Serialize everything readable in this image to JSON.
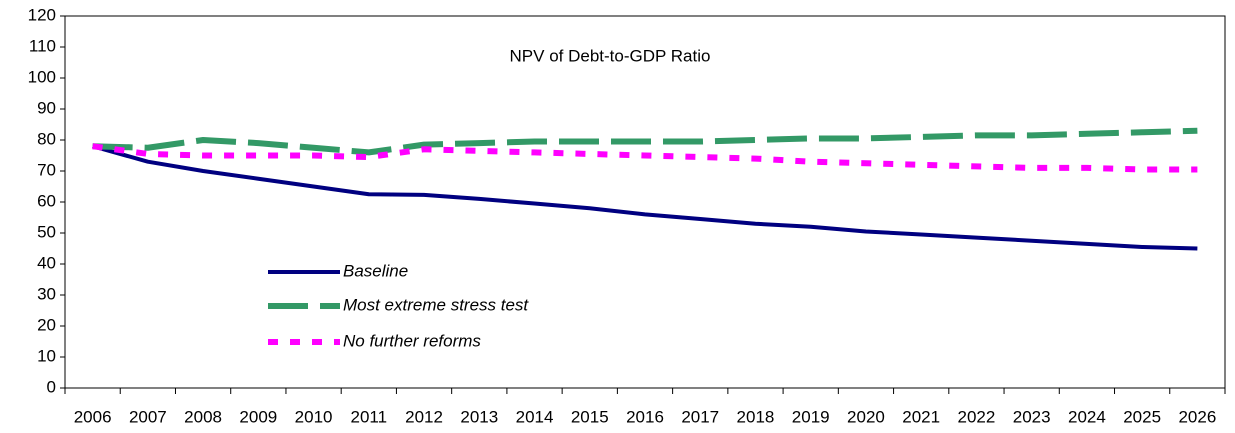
{
  "chart_data": {
    "type": "line",
    "title": "NPV of Debt-to-GDP Ratio",
    "categories": [
      "2006",
      "2007",
      "2008",
      "2009",
      "2010",
      "2011",
      "2012",
      "2013",
      "2014",
      "2015",
      "2016",
      "2017",
      "2018",
      "2019",
      "2020",
      "2021",
      "2022",
      "2023",
      "2024",
      "2025",
      "2026"
    ],
    "series": [
      {
        "name": "Baseline",
        "color": "#000080",
        "values": [
          78,
          73,
          70,
          67.5,
          65,
          62.5,
          62.3,
          61,
          59.5,
          58,
          56,
          54.5,
          53,
          52,
          50.5,
          49.5,
          48.5,
          47.5,
          46.5,
          45.5,
          45
        ]
      },
      {
        "name": "Most extreme stress test",
        "color": "#339966",
        "values": [
          78,
          77.5,
          80,
          79,
          77.5,
          76,
          78.5,
          79,
          79.5,
          79.5,
          79.5,
          79.5,
          80,
          80.5,
          80.5,
          81,
          81.5,
          81.5,
          82,
          82.5,
          83
        ]
      },
      {
        "name": "No further reforms",
        "color": "#ff00ff",
        "values": [
          78,
          75.5,
          75,
          75,
          75,
          74.5,
          77,
          76.5,
          76,
          75.5,
          75,
          74.5,
          74,
          73,
          72.5,
          72,
          71.5,
          71,
          71,
          70.5,
          70.5
        ]
      }
    ],
    "ylim": [
      0,
      120
    ],
    "yticks": [
      0,
      10,
      20,
      30,
      40,
      50,
      60,
      70,
      80,
      90,
      100,
      110,
      120
    ],
    "grid": false
  }
}
